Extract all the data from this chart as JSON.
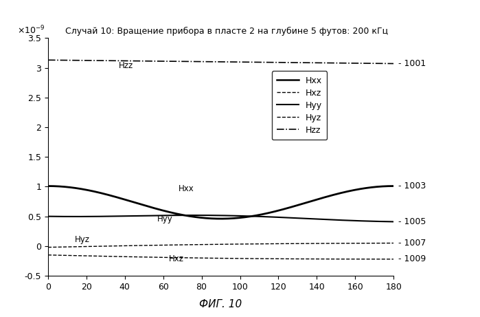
{
  "title": "Случай 10: Вращение прибора в пласте 2 на глубине 5 футов: 200 кГц",
  "xlabel": "ФИГ. 10",
  "xlim": [
    0,
    180
  ],
  "ylim": [
    -0.5,
    3.5
  ],
  "xticks": [
    0,
    20,
    40,
    60,
    80,
    100,
    120,
    140,
    160,
    180
  ],
  "yticks": [
    -0.5,
    0,
    0.5,
    1.0,
    1.5,
    2.0,
    2.5,
    3.0,
    3.5
  ],
  "ytick_labels": [
    "-0.5",
    "0",
    "0.5",
    "1",
    "1.5",
    "2",
    "2.5",
    "3",
    "3.5"
  ],
  "background_color": "#ffffff",
  "Hzz_start": 3.13,
  "Hzz_end": 3.07,
  "Hxx_start": 1.01,
  "Hxx_mid": 0.46,
  "Hyy_start": 0.5,
  "Hyy_mid_val": 0.56,
  "Hyz_start": -0.02,
  "Hyz_end": 0.05,
  "Hxz_start": -0.15,
  "Hxz_end": -0.22,
  "point_labels": [
    "1001",
    "1003",
    "1005",
    "1007",
    "1009"
  ],
  "legend_entries": [
    {
      "label": "Hxx",
      "ls": "-",
      "lw": 1.8
    },
    {
      "label": "Hxz",
      "ls": "--",
      "lw": 1.0
    },
    {
      "label": "Hyy",
      "ls": "-",
      "lw": 1.5
    },
    {
      "label": "Hyz",
      "ls": "--",
      "lw": 1.0
    },
    {
      "label": "Hzz",
      "ls": "-.",
      "lw": 1.2
    }
  ]
}
